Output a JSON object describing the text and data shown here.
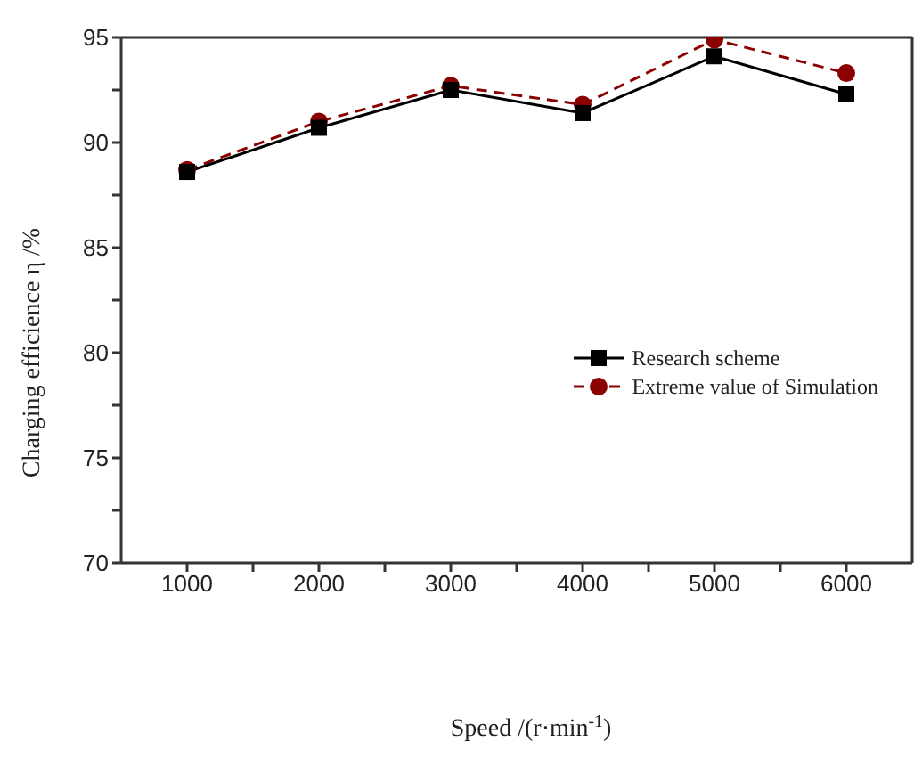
{
  "chart_data": {
    "type": "line",
    "xlabel": "Speed /(r·min$^{-1}$)",
    "ylabel": "Charging efficience η /%",
    "x": [
      1000,
      2000,
      3000,
      4000,
      5000,
      6000
    ],
    "series": [
      {
        "name": "Research scheme",
        "color": "#000000",
        "values": [
          88.6,
          90.7,
          92.5,
          91.4,
          94.1,
          92.3
        ],
        "marker": "square",
        "line_style": "solid"
      },
      {
        "name": "Extreme value of Simulation",
        "color": "#8b0000",
        "values": [
          88.7,
          91.0,
          92.7,
          91.8,
          94.9,
          93.3
        ],
        "marker": "circle",
        "line_style": "dashed"
      }
    ],
    "xlim": [
      500,
      6500
    ],
    "xticks": [
      1000,
      {
        "value": 1500,
        "label": null
      },
      2000,
      {
        "value": 2500,
        "label": null
      },
      3000,
      {
        "value": 3500,
        "label": null
      },
      4000,
      {
        "value": 4500,
        "label": null
      },
      5000,
      {
        "value": 5500,
        "label": null
      },
      6000
    ],
    "ylim": [
      70,
      95
    ],
    "yticks": [
      70,
      {
        "value": 72.5,
        "label": null
      },
      75,
      {
        "value": 77.5,
        "label": null
      },
      80,
      {
        "value": 82.5,
        "label": null
      },
      85,
      {
        "value": 87.5,
        "label": null
      },
      90,
      {
        "value": 92.5,
        "label": null
      },
      95
    ],
    "grid": false,
    "legend": "right"
  }
}
